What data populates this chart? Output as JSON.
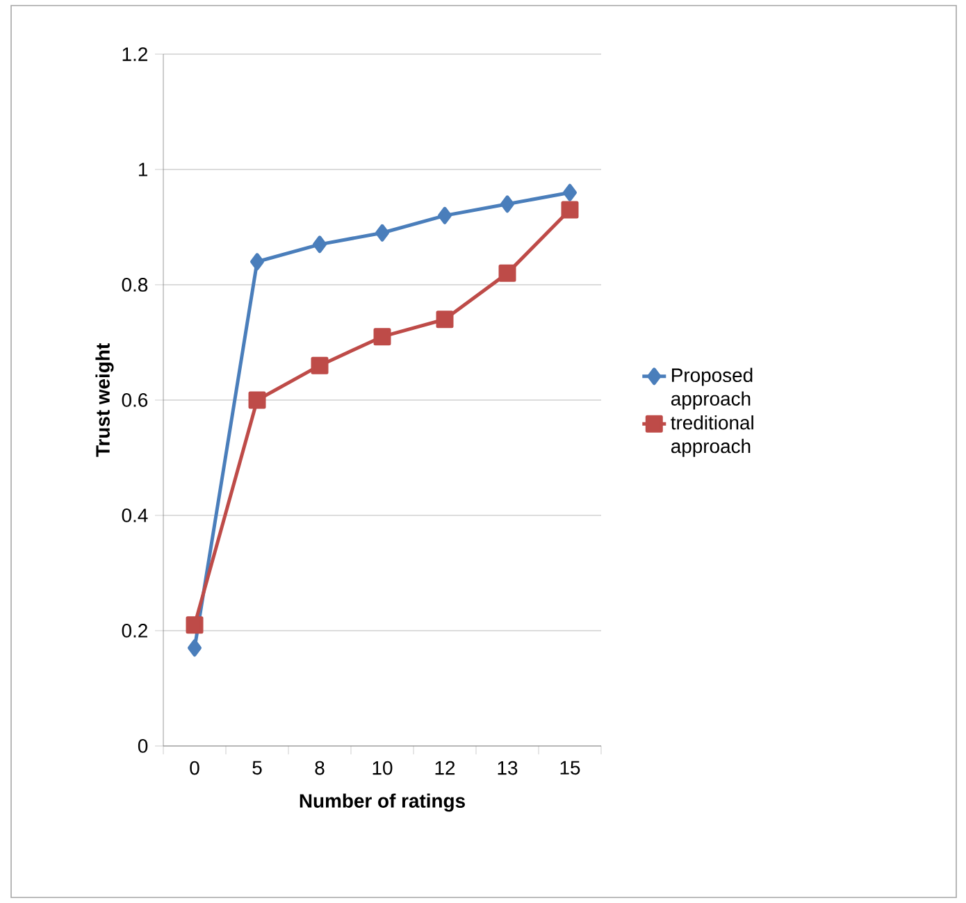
{
  "chart_data": {
    "type": "line",
    "xlabel": "Number of ratings",
    "ylabel": "Trust weight",
    "categories": [
      "0",
      "5",
      "8",
      "10",
      "12",
      "13",
      "15"
    ],
    "ylim": [
      0,
      1.2
    ],
    "yticks": [
      0,
      0.2,
      0.4,
      0.6,
      0.8,
      1,
      1.2
    ],
    "grid": "y",
    "legend": "right",
    "series": [
      {
        "name": "Proposed approach",
        "color": "#4a7ebb",
        "marker": "diamond",
        "values": [
          0.17,
          0.84,
          0.87,
          0.89,
          0.92,
          0.94,
          0.96
        ]
      },
      {
        "name": "treditional approach",
        "color": "#be4b48",
        "marker": "square",
        "values": [
          0.21,
          0.6,
          0.66,
          0.71,
          0.74,
          0.82,
          0.93
        ]
      }
    ]
  }
}
